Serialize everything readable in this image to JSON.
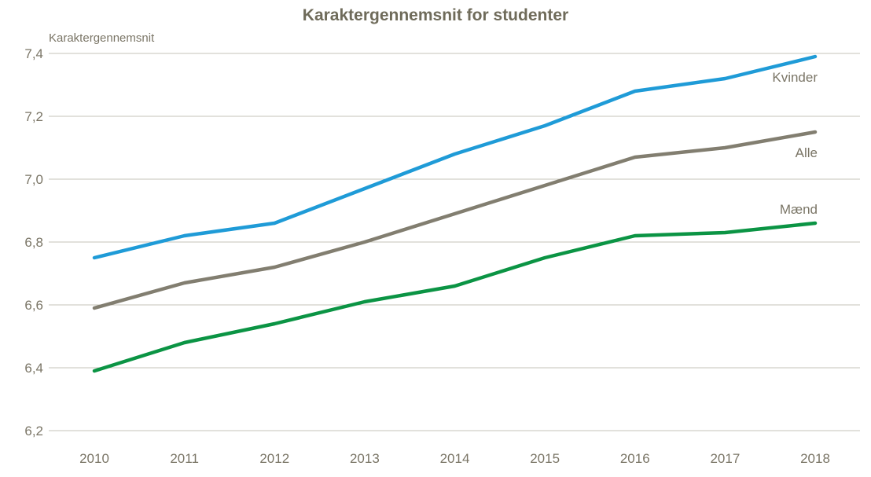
{
  "chart": {
    "title": "Karaktergennemsnit for studenter",
    "y_axis_label": "Karaktergennemsnit"
  },
  "chart_data": {
    "type": "line",
    "title": "Karaktergennemsnit for studenter",
    "ylabel": "Karaktergennemsnit",
    "xlabel": "",
    "x": [
      2010,
      2011,
      2012,
      2013,
      2014,
      2015,
      2016,
      2017,
      2018
    ],
    "x_tick_labels": [
      "2010",
      "2011",
      "2012",
      "2013",
      "2014",
      "2015",
      "2016",
      "2017",
      "2018"
    ],
    "ylim": [
      6.2,
      7.4
    ],
    "y_ticks": [
      {
        "value": 7.4,
        "label": "7,4"
      },
      {
        "value": 7.2,
        "label": "7,2"
      },
      {
        "value": 7.0,
        "label": "7,0"
      },
      {
        "value": 6.8,
        "label": "6,8"
      },
      {
        "value": 6.6,
        "label": "6,6"
      },
      {
        "value": 6.4,
        "label": "6,4"
      },
      {
        "value": 6.2,
        "label": "6,2"
      }
    ],
    "grid": "horizontal-only",
    "legend": "direct-labels-at-line-ends",
    "series": [
      {
        "id": "kvinder",
        "name": "Kvinder",
        "color": "#1F9BD7",
        "label_position": "below",
        "values": [
          6.75,
          6.82,
          6.86,
          6.97,
          7.08,
          7.17,
          7.28,
          7.32,
          7.39
        ]
      },
      {
        "id": "alle",
        "name": "Alle",
        "color": "#827E70",
        "label_position": "below",
        "values": [
          6.59,
          6.67,
          6.72,
          6.8,
          6.89,
          6.98,
          7.07,
          7.1,
          7.15
        ]
      },
      {
        "id": "maend",
        "name": "Mænd",
        "color": "#0B9444",
        "label_position": "above",
        "values": [
          6.39,
          6.48,
          6.54,
          6.61,
          6.66,
          6.75,
          6.82,
          6.83,
          6.86
        ]
      }
    ],
    "colors": {
      "grid_line": "#C6C3B8",
      "tick_text": "#7A7566",
      "title_text": "#6F6B5A"
    }
  }
}
